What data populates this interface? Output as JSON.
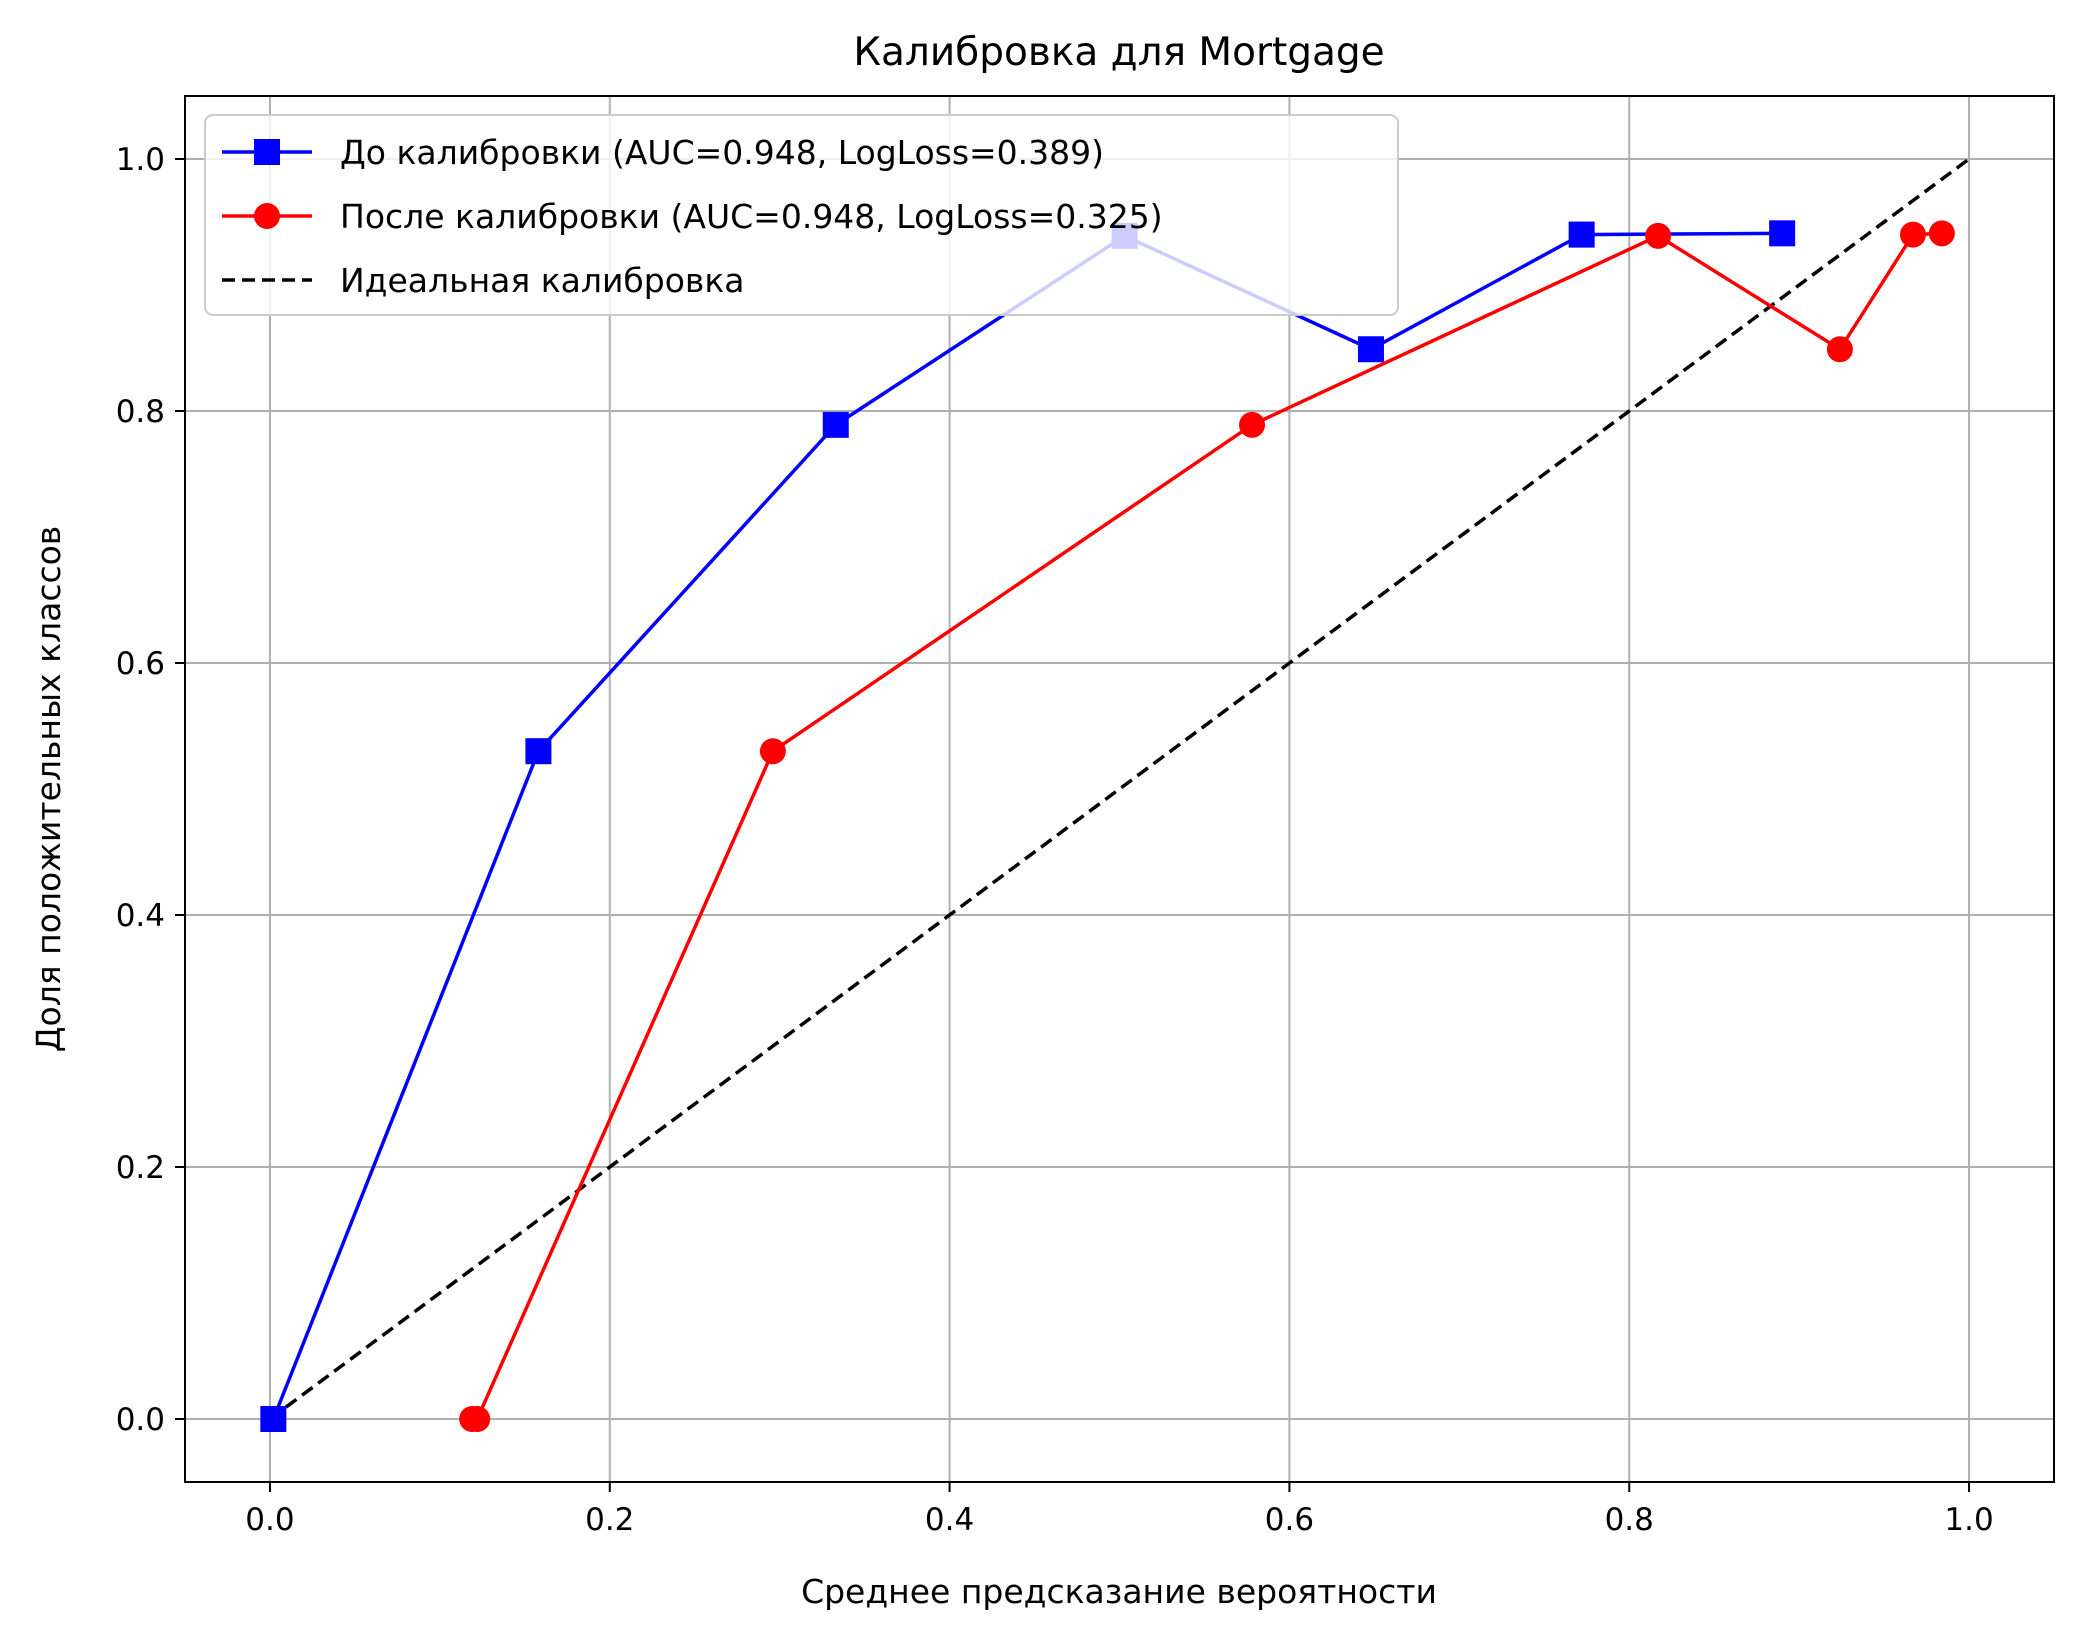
{
  "chart_data": {
    "type": "line",
    "title": "Калибровка для Mortgage",
    "xlabel": "Среднее предсказание вероятности",
    "ylabel": "Доля положительных классов",
    "xlim": [
      -0.05,
      1.05
    ],
    "ylim": [
      -0.05,
      1.05
    ],
    "x_ticks": [
      0.0,
      0.2,
      0.4,
      0.6,
      0.8,
      1.0
    ],
    "y_ticks": [
      0.0,
      0.2,
      0.4,
      0.6,
      0.8,
      1.0
    ],
    "x_tick_labels": [
      "0.0",
      "0.2",
      "0.4",
      "0.6",
      "0.8",
      "1.0"
    ],
    "y_tick_labels": [
      "0.0",
      "0.2",
      "0.4",
      "0.6",
      "0.8",
      "1.0"
    ],
    "grid": true,
    "legend_position": "top-left",
    "series": [
      {
        "name": "До калибровки (AUC=0.948, LogLoss=0.389)",
        "color": "#0000ff",
        "marker": "square",
        "line_style": "solid",
        "x": [
          0.002,
          0.158,
          0.333,
          0.503,
          0.648,
          0.772,
          0.89
        ],
        "y": [
          0.0,
          0.53,
          0.789,
          0.939,
          0.849,
          0.94,
          0.941
        ]
      },
      {
        "name": "После калибровки (AUC=0.948, LogLoss=0.325)",
        "color": "#ff0000",
        "marker": "circle",
        "line_style": "solid",
        "x": [
          0.119,
          0.122,
          0.296,
          0.578,
          0.817,
          0.924,
          0.967,
          0.984
        ],
        "y": [
          0.0,
          0.0,
          0.53,
          0.789,
          0.939,
          0.849,
          0.94,
          0.941
        ]
      },
      {
        "name": "Идеальная калибровка",
        "color": "#000000",
        "marker": "none",
        "line_style": "dashed",
        "x": [
          0.0,
          1.0
        ],
        "y": [
          0.0,
          1.0
        ]
      }
    ]
  }
}
